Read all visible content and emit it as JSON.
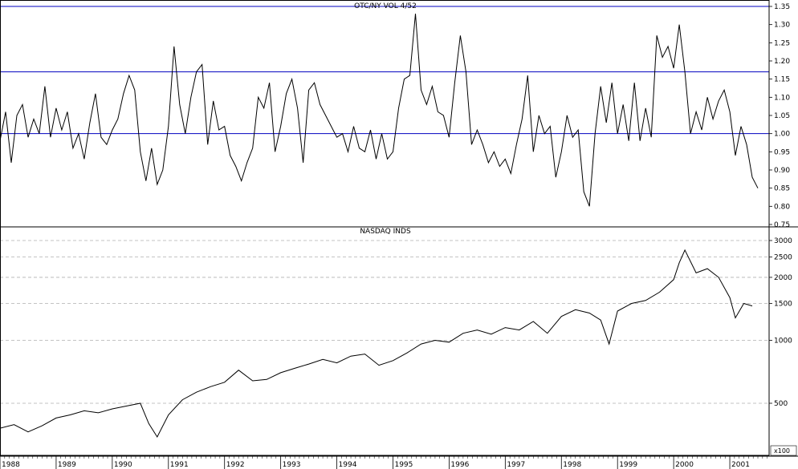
{
  "colors": {
    "background": "#ffffff",
    "series_line": "#000000",
    "reference_line": "#0000c0",
    "grid": "#b0b0b0",
    "frame": "#000000"
  },
  "chart_data": [
    {
      "type": "line",
      "title": "OTC/NY VOL 4/52",
      "ylim": [
        0.75,
        1.35
      ],
      "y_scale": "linear",
      "yticks": [
        "1.35",
        "1.30",
        "1.25",
        "1.20",
        "1.15",
        "1.10",
        "1.05",
        "1.00",
        "0.95",
        "0.90",
        "0.85",
        "0.80",
        "0.75"
      ],
      "reference_lines": [
        1.35,
        1.17,
        1.0
      ],
      "grid": false,
      "series": [
        {
          "x": [
            1988.0,
            1988.1,
            1988.2,
            1988.3,
            1988.4,
            1988.5,
            1988.6,
            1988.7,
            1988.8,
            1988.9,
            1989.0,
            1989.1,
            1989.2,
            1989.3,
            1989.4,
            1989.5,
            1989.6,
            1989.7,
            1989.8,
            1989.9,
            1990.0,
            1990.1,
            1990.2,
            1990.3,
            1990.4,
            1990.5,
            1990.6,
            1990.7,
            1990.8,
            1990.9,
            1991.0,
            1991.1,
            1991.2,
            1991.3,
            1991.4,
            1991.5,
            1991.6,
            1991.7,
            1991.8,
            1991.9,
            1992.0,
            1992.1,
            1992.2,
            1992.3,
            1992.4,
            1992.5,
            1992.6,
            1992.7,
            1992.8,
            1992.9,
            1993.0,
            1993.1,
            1993.2,
            1993.3,
            1993.4,
            1993.5,
            1993.6,
            1993.7,
            1993.8,
            1993.9,
            1994.0,
            1994.1,
            1994.2,
            1994.3,
            1994.4,
            1994.5,
            1994.6,
            1994.7,
            1994.8,
            1994.9,
            1995.0,
            1995.1,
            1995.2,
            1995.3,
            1995.4,
            1995.5,
            1995.6,
            1995.7,
            1995.8,
            1995.9,
            1996.0,
            1996.1,
            1996.2,
            1996.3,
            1996.4,
            1996.5,
            1996.6,
            1996.7,
            1996.8,
            1996.9,
            1997.0,
            1997.1,
            1997.2,
            1997.3,
            1997.4,
            1997.5,
            1997.6,
            1997.7,
            1997.8,
            1997.9,
            1998.0,
            1998.1,
            1998.2,
            1998.3,
            1998.4,
            1998.5,
            1998.6,
            1998.7,
            1998.8,
            1998.9,
            1999.0,
            1999.1,
            1999.2,
            1999.3,
            1999.4,
            1999.5,
            1999.6,
            1999.7,
            1999.8,
            1999.9,
            2000.0,
            2000.1,
            2000.2,
            2000.3,
            2000.4,
            2000.5,
            2000.6,
            2000.7,
            2000.8,
            2000.9,
            2001.0,
            2001.1,
            2001.2,
            2001.3,
            2001.4,
            2001.5
          ],
          "values": [
            0.98,
            1.06,
            0.92,
            1.05,
            1.08,
            0.99,
            1.04,
            1.0,
            1.13,
            0.99,
            1.07,
            1.01,
            1.06,
            0.96,
            1.0,
            0.93,
            1.03,
            1.11,
            0.99,
            0.97,
            1.01,
            1.04,
            1.11,
            1.16,
            1.12,
            0.95,
            0.87,
            0.96,
            0.86,
            0.9,
            1.02,
            1.24,
            1.08,
            1.0,
            1.1,
            1.17,
            1.19,
            0.97,
            1.09,
            1.01,
            1.02,
            0.94,
            0.91,
            0.87,
            0.92,
            0.96,
            1.1,
            1.07,
            1.14,
            0.95,
            1.02,
            1.11,
            1.15,
            1.07,
            0.92,
            1.12,
            1.14,
            1.08,
            1.05,
            1.02,
            0.99,
            1.0,
            0.95,
            1.02,
            0.96,
            0.95,
            1.01,
            0.93,
            1.0,
            0.93,
            0.95,
            1.07,
            1.15,
            1.16,
            1.33,
            1.12,
            1.08,
            1.13,
            1.06,
            1.05,
            0.99,
            1.14,
            1.27,
            1.17,
            0.97,
            1.01,
            0.97,
            0.92,
            0.95,
            0.91,
            0.93,
            0.89,
            0.97,
            1.04,
            1.16,
            0.95,
            1.05,
            1.0,
            1.02,
            0.88,
            0.95,
            1.05,
            0.99,
            1.01,
            0.84,
            0.8,
            1.0,
            1.13,
            1.03,
            1.14,
            1.0,
            1.08,
            0.98,
            1.14,
            0.98,
            1.07,
            0.99,
            1.27,
            1.21,
            1.24,
            1.18,
            1.3,
            1.17,
            1.0,
            1.06,
            1.01,
            1.1,
            1.04,
            1.09,
            1.12,
            1.06,
            0.94,
            1.02,
            0.97,
            0.88,
            0.85
          ]
        }
      ]
    },
    {
      "type": "line",
      "title": "NASDAQ INDS",
      "ylim": [
        300,
        3400
      ],
      "y_scale": "log",
      "yticks": [
        "3000",
        "2500",
        "2000",
        "1500",
        "1000",
        "500"
      ],
      "grid": true,
      "scale_note": "x100",
      "x_axis": {
        "tick_labels": [
          "1988",
          "1989",
          "1990",
          "1991",
          "1992",
          "1993",
          "1994",
          "1995",
          "1996",
          "1997",
          "1998",
          "1999",
          "2000",
          "2001"
        ]
      },
      "series": [
        {
          "x": [
            1988.0,
            1988.25,
            1988.5,
            1988.75,
            1989.0,
            1989.25,
            1989.5,
            1989.75,
            1990.0,
            1990.25,
            1990.5,
            1990.65,
            1990.8,
            1991.0,
            1991.25,
            1991.5,
            1991.75,
            1992.0,
            1992.25,
            1992.5,
            1992.75,
            1993.0,
            1993.25,
            1993.5,
            1993.75,
            1994.0,
            1994.25,
            1994.5,
            1994.75,
            1995.0,
            1995.25,
            1995.5,
            1995.75,
            1996.0,
            1996.25,
            1996.5,
            1996.75,
            1997.0,
            1997.25,
            1997.5,
            1997.75,
            1998.0,
            1998.25,
            1998.5,
            1998.7,
            1998.85,
            1999.0,
            1999.25,
            1999.5,
            1999.75,
            2000.0,
            2000.1,
            2000.2,
            2000.4,
            2000.6,
            2000.8,
            2001.0,
            2001.1,
            2001.25,
            2001.4
          ],
          "values": [
            380,
            395,
            365,
            390,
            425,
            440,
            460,
            450,
            470,
            485,
            500,
            400,
            345,
            440,
            520,
            565,
            600,
            630,
            720,
            640,
            650,
            700,
            735,
            770,
            810,
            780,
            840,
            860,
            760,
            800,
            870,
            960,
            1000,
            980,
            1080,
            1120,
            1070,
            1150,
            1120,
            1230,
            1080,
            1300,
            1400,
            1350,
            1250,
            960,
            1380,
            1500,
            1550,
            1700,
            1950,
            2350,
            2700,
            2100,
            2200,
            2000,
            1600,
            1280,
            1500,
            1460
          ]
        }
      ]
    }
  ]
}
